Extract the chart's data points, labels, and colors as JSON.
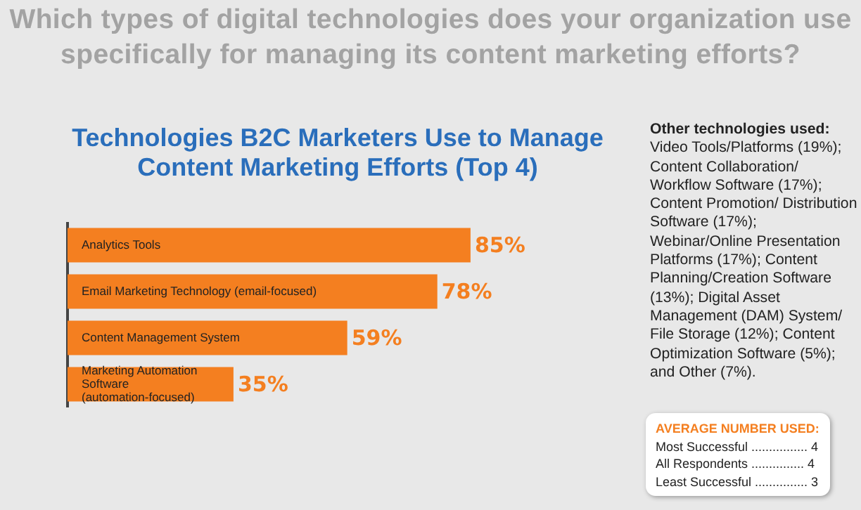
{
  "chart_data": {
    "type": "bar",
    "orientation": "horizontal",
    "title": "Which types of digital technologies does your organization use specifically for managing its content marketing efforts?",
    "subtitle": "Technologies B2C Marketers Use to Manage Content Marketing Efforts (Top 4)",
    "categories": [
      "Analytics Tools",
      "Email Marketing Technology (email-focused)",
      "Content Management System",
      "Marketing Automation Software (automation-focused)"
    ],
    "values": [
      85,
      78,
      59,
      35
    ],
    "value_labels": [
      "85%",
      "78%",
      "59%",
      "35%"
    ],
    "color": "#f47f20",
    "annotations": [
      "Other technologies used:",
      "Video Tools/Platforms (19%); Content Collaboration/ Workflow Software (17%); Content Promotion/ Distribution Software (17%); Webinar/Online Presentation Platforms (17%); Content Planning/Creation Software (13%); Digital Asset Management (DAM) System/ File Storage (12%); Content Optimization Software (5%); and Other (7%).",
      "AVERAGE NUMBER USED:",
      "Most Successful ................ 4",
      "All Respondents ............... 4",
      "Least Successful ............... 3"
    ]
  }
}
